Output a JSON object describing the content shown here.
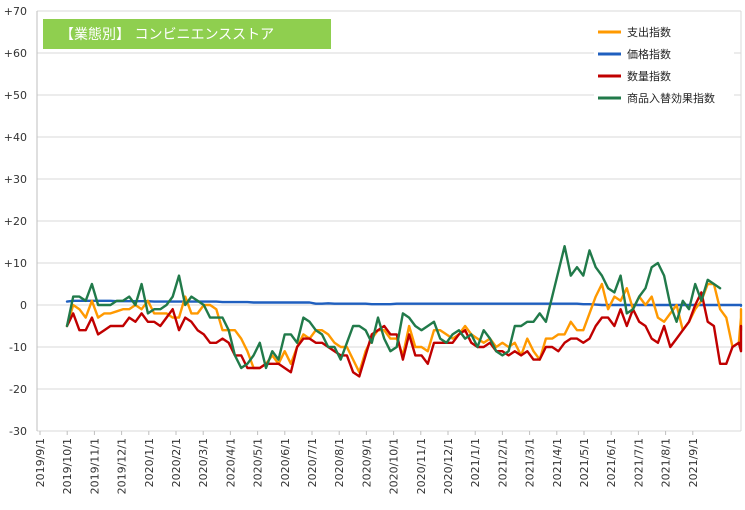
{
  "chart_data": {
    "type": "line",
    "title": "【業態別】 コンビニエンスストア",
    "title_box_color": "#8fcf4f",
    "ylim": [
      -30,
      70
    ],
    "yticks": [
      "+70",
      "+60",
      "+50",
      "+40",
      "+30",
      "+20",
      "+10",
      "0",
      "-10",
      "-20",
      "-30"
    ],
    "ytick_values": [
      70,
      60,
      50,
      40,
      30,
      20,
      10,
      0,
      -10,
      -20,
      -30
    ],
    "xticks": [
      "2019/9/1",
      "2019/10/1",
      "2019/11/1",
      "2019/12/1",
      "2020/1/1",
      "2020/2/1",
      "2020/3/1",
      "2020/4/1",
      "2020/5/1",
      "2020/6/1",
      "2020/7/1",
      "2020/8/1",
      "2020/9/1",
      "2020/10/1",
      "2020/11/1",
      "2020/12/1",
      "2021/1/1",
      "2021/2/1",
      "2021/3/1",
      "2021/4/1",
      "2021/5/1",
      "2021/6/1",
      "2021/7/1",
      "2021/8/1",
      "2021/9/1"
    ],
    "x_unit": "week index (week 0 = first plotted week in 2019/10)",
    "grid": true,
    "legend_position": "top-right",
    "series": [
      {
        "name": "支出指数",
        "color": "#ff9900",
        "values": [
          -5,
          0,
          -1,
          -3,
          1,
          -3,
          -2,
          -2,
          -1.5,
          -1,
          -1,
          0,
          -1,
          1,
          -2,
          -2,
          -2,
          -3,
          -3,
          2,
          -2,
          -2,
          0,
          0,
          -1,
          -6,
          -6,
          -6,
          -8,
          -11,
          -15,
          -15,
          -14,
          -12,
          -14,
          -11,
          -14,
          -10,
          -7,
          -8,
          -6,
          -6,
          -7,
          -9,
          -10,
          -10,
          -13,
          -16,
          -11,
          -8,
          -6,
          -6,
          -8,
          -8,
          -12,
          -5,
          -10,
          -10,
          -11,
          -6,
          -6,
          -7,
          -8,
          -7,
          -5,
          -7,
          -8,
          -9,
          -8,
          -10,
          -9,
          -10,
          -9,
          -12,
          -8,
          -11,
          -13,
          -8,
          -8,
          -7,
          -7,
          -4,
          -6,
          -6,
          -2,
          2,
          5,
          -1,
          2,
          1,
          4,
          -1,
          2,
          0,
          2,
          -3,
          -4,
          -2,
          0,
          -6,
          -4,
          -1,
          1,
          5,
          5,
          -1,
          -3,
          -10,
          -9,
          -3,
          -5,
          -6,
          -3,
          -3,
          -1
        ]
      },
      {
        "name": "価格指数",
        "color": "#1f5fbf",
        "values": [
          0.8,
          1,
          1,
          1,
          1,
          1,
          1,
          1,
          0.9,
          0.9,
          0.9,
          0.9,
          0.9,
          0.9,
          0.8,
          0.8,
          0.8,
          0.8,
          0.8,
          0.8,
          0.8,
          0.8,
          0.8,
          0.8,
          0.8,
          0.7,
          0.7,
          0.7,
          0.7,
          0.7,
          0.6,
          0.6,
          0.6,
          0.6,
          0.6,
          0.6,
          0.6,
          0.6,
          0.6,
          0.6,
          0.3,
          0.3,
          0.4,
          0.3,
          0.3,
          0.3,
          0.3,
          0.3,
          0.3,
          0.2,
          0.2,
          0.2,
          0.2,
          0.3,
          0.3,
          0.3,
          0.3,
          0.3,
          0.3,
          0.3,
          0.3,
          0.3,
          0.3,
          0.3,
          0.3,
          0.3,
          0.3,
          0.3,
          0.3,
          0.3,
          0.3,
          0.3,
          0.3,
          0.3,
          0.3,
          0.3,
          0.3,
          0.3,
          0.3,
          0.3,
          0.3,
          0.3,
          0.3,
          0.2,
          0.2,
          0.1,
          0,
          0,
          0,
          0,
          0,
          0,
          0,
          0,
          0,
          0,
          0,
          0,
          0,
          0,
          0,
          0,
          0,
          0,
          0,
          0,
          0,
          0,
          0,
          0,
          -0.1,
          -0.2,
          -0.2,
          -0.2,
          -0.2
        ]
      },
      {
        "name": "数量指数",
        "color": "#c00000",
        "values": [
          -5,
          -2,
          -6,
          -6,
          -3,
          -7,
          -6,
          -5,
          -5,
          -5,
          -3,
          -4,
          -2,
          -4,
          -4,
          -5,
          -3,
          -1,
          -6,
          -3,
          -4,
          -6,
          -7,
          -9,
          -9,
          -8,
          -9,
          -12,
          -12,
          -15,
          -15,
          -15,
          -14,
          -14,
          -14,
          -15,
          -16,
          -10,
          -8,
          -8,
          -9,
          -9,
          -10,
          -11,
          -12,
          -12,
          -16,
          -17,
          -12,
          -7,
          -6,
          -5,
          -7,
          -7,
          -13,
          -7,
          -12,
          -12,
          -14,
          -9,
          -9,
          -9,
          -9,
          -7,
          -6,
          -9,
          -10,
          -10,
          -9,
          -11,
          -11,
          -12,
          -11,
          -12,
          -11,
          -13,
          -13,
          -10,
          -10,
          -11,
          -9,
          -8,
          -8,
          -9,
          -8,
          -5,
          -3,
          -3,
          -5,
          -1,
          -5,
          -1,
          -4,
          -5,
          -8,
          -9,
          -5,
          -10,
          -8,
          -6,
          -4,
          0,
          3,
          -4,
          -5,
          -14,
          -14,
          -10,
          -9,
          -11,
          -8,
          -10,
          -8,
          -9,
          -5
        ]
      },
      {
        "name": "商品入替効果指数",
        "color": "#217a4a",
        "values": [
          -5,
          2,
          2,
          1,
          5,
          0,
          0,
          0,
          1,
          1,
          2,
          0,
          5,
          -2,
          -1,
          -1,
          0,
          2,
          7,
          0,
          2,
          1,
          0,
          -3,
          -3,
          -3,
          -6,
          -12,
          -15,
          -14,
          -12,
          -9,
          -15,
          -11,
          -13,
          -7,
          -7,
          -9,
          -3,
          -4,
          -6,
          -7,
          -10,
          -10,
          -13,
          -9,
          -5,
          -5,
          -6,
          -9,
          -3,
          -8,
          -11,
          -10,
          -2,
          -3,
          -5,
          -6,
          -5,
          -4,
          -8,
          -9,
          -7,
          -6,
          -8,
          -7,
          -10,
          -6,
          -8,
          -11,
          -12,
          -11,
          -5,
          -5,
          -4,
          -4,
          -2,
          -4,
          2,
          8,
          14,
          7,
          9,
          7,
          13,
          9,
          7,
          4,
          3,
          7,
          -2,
          -1,
          2,
          4,
          9,
          10,
          7,
          0,
          -4,
          1,
          -1,
          5,
          1,
          6,
          5,
          4
        ]
      }
    ]
  }
}
